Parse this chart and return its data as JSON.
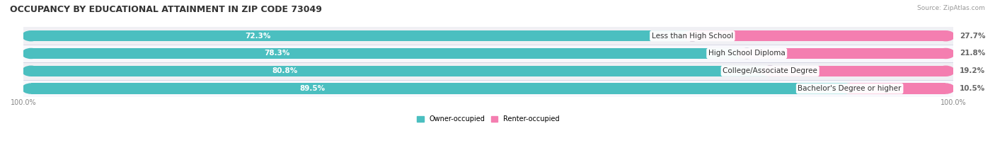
{
  "title": "OCCUPANCY BY EDUCATIONAL ATTAINMENT IN ZIP CODE 73049",
  "source": "Source: ZipAtlas.com",
  "categories": [
    "Less than High School",
    "High School Diploma",
    "College/Associate Degree",
    "Bachelor's Degree or higher"
  ],
  "owner_values": [
    72.3,
    78.3,
    80.8,
    89.5
  ],
  "renter_values": [
    27.7,
    21.8,
    19.2,
    10.5
  ],
  "owner_color": "#4bbfc0",
  "renter_color": "#f47eb0",
  "track_color": "#e8e8ec",
  "row_bg_colors": [
    "#f0f0f4",
    "#f8f8fc",
    "#f0f0f4",
    "#f8f8fc"
  ],
  "owner_label": "Owner-occupied",
  "renter_label": "Renter-occupied",
  "title_fontsize": 9,
  "label_fontsize": 7.5,
  "value_fontsize": 7.5,
  "tick_fontsize": 7,
  "figsize": [
    14.06,
    2.33
  ],
  "dpi": 100
}
